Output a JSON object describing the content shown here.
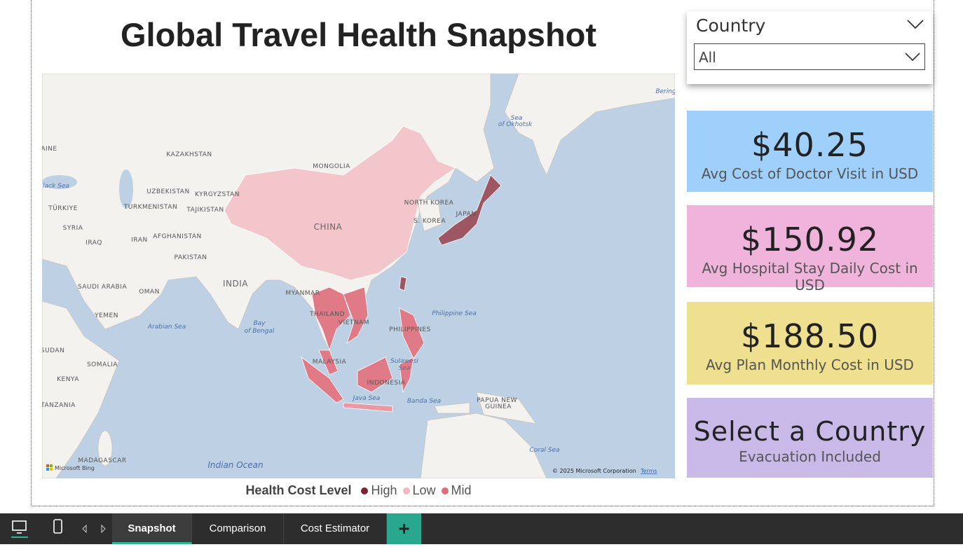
{
  "header": {
    "title": "Global Travel Health Snapshot"
  },
  "slicer": {
    "label": "Country",
    "selected": "All"
  },
  "map": {
    "country_labels": [
      "AINE",
      "KAZAKHSTAN",
      "MONGOLIA",
      "UZBEKISTAN",
      "KYRGYZSTAN",
      "TURKMENISTAN",
      "TAJIKISTAN",
      "TÜRKIYE",
      "SYRIA",
      "IRAQ",
      "IRAN",
      "AFGHANISTAN",
      "PAKISTAN",
      "INDIA",
      "CHINA",
      "NORTH KOREA",
      "S. KOREA",
      "JAPAN",
      "SAUDI ARABIA",
      "OMAN",
      "YEMEN",
      "MYANMAR",
      "THAILAND",
      "VIETNAM",
      "PHILIPPINES",
      "MALAYSIA",
      "INDONESIA",
      "PAPUA NEW",
      "GUINEA",
      "SUDAN",
      "SOMALIA",
      "KENYA",
      "TANZANIA",
      "MADAGASCAR"
    ],
    "water_labels": [
      "Sea",
      "of Okhotsk",
      "Bering",
      "lack Sea",
      "Arabian Sea",
      "Bay",
      "of Bengal",
      "Philippine Sea",
      "Sulawesi",
      "Sea",
      "Java Sea",
      "Banda Sea",
      "Coral Sea",
      "Indian Ocean"
    ],
    "bing": "Microsoft Bing",
    "attribution": "© 2025 Microsoft Corporation",
    "terms": "Terms"
  },
  "legend": {
    "title": "Health Cost Level",
    "items": [
      {
        "name": "High",
        "color": "#7b2430"
      },
      {
        "name": "Low",
        "color": "#f2b8c0"
      },
      {
        "name": "Mid",
        "color": "#e06b79"
      }
    ]
  },
  "cards": [
    {
      "value": "$40.25",
      "label": "Avg Cost of Doctor Visit in USD",
      "color": "#9fd0fb"
    },
    {
      "value": "$150.92",
      "label": "Avg Hospital Stay Daily Cost in USD",
      "color": "#f0b4dc"
    },
    {
      "value": "$188.50",
      "label": "Avg Plan Monthly Cost in USD",
      "color": "#eee08f"
    },
    {
      "value": "Select a Country",
      "label": "Evacuation Included",
      "color": "#c9b9e8"
    }
  ],
  "tabs": [
    "Snapshot",
    "Comparison",
    "Cost Estimator"
  ]
}
